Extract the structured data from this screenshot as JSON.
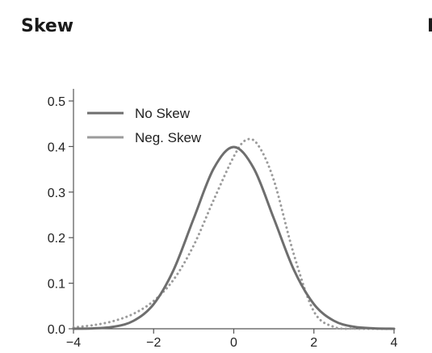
{
  "header": {
    "title": "Skew",
    "next_panel_title": "I"
  },
  "colors": {
    "background": "#ffffff",
    "axis": "#555555",
    "text": "#222222",
    "no_skew": "#6e6e6e",
    "neg_skew": "#9b9b9b"
  },
  "chart_data": {
    "type": "line",
    "title": "",
    "xlabel": "",
    "ylabel": "",
    "xlim": [
      -4,
      4
    ],
    "ylim": [
      0,
      0.5
    ],
    "xticks": [
      -4,
      -2,
      0,
      2,
      4
    ],
    "xtick_labels": [
      "−4",
      "−2",
      "0",
      "2",
      "4"
    ],
    "yticks": [
      0.0,
      0.1,
      0.2,
      0.3,
      0.4,
      0.5
    ],
    "ytick_labels": [
      "0.0",
      "0.1",
      "0.2",
      "0.3",
      "0.4",
      "0.5"
    ],
    "grid": false,
    "legend_position": "top-left",
    "series": [
      {
        "name": "No Skew",
        "style": "solid",
        "color": "#6e6e6e",
        "x": [
          -4,
          -3.5,
          -3,
          -2.5,
          -2,
          -1.5,
          -1,
          -0.5,
          0,
          0.5,
          1,
          1.5,
          2,
          2.5,
          3,
          3.5,
          4
        ],
        "y": [
          0.0001,
          0.0009,
          0.0044,
          0.0175,
          0.054,
          0.1295,
          0.242,
          0.352,
          0.399,
          0.352,
          0.242,
          0.1295,
          0.054,
          0.0175,
          0.0044,
          0.0009,
          0.0001
        ]
      },
      {
        "name": "Neg. Skew",
        "style": "dotted",
        "color": "#9b9b9b",
        "x": [
          -4,
          -3.5,
          -3,
          -2.5,
          -2,
          -1.5,
          -1,
          -0.5,
          0,
          0.3,
          0.6,
          1,
          1.5,
          2,
          2.5,
          3,
          3.5,
          4
        ],
        "y": [
          0.003,
          0.008,
          0.017,
          0.033,
          0.061,
          0.108,
          0.183,
          0.283,
          0.378,
          0.414,
          0.404,
          0.326,
          0.163,
          0.038,
          0.004,
          0.0003,
          0.0,
          0.0
        ]
      }
    ]
  }
}
